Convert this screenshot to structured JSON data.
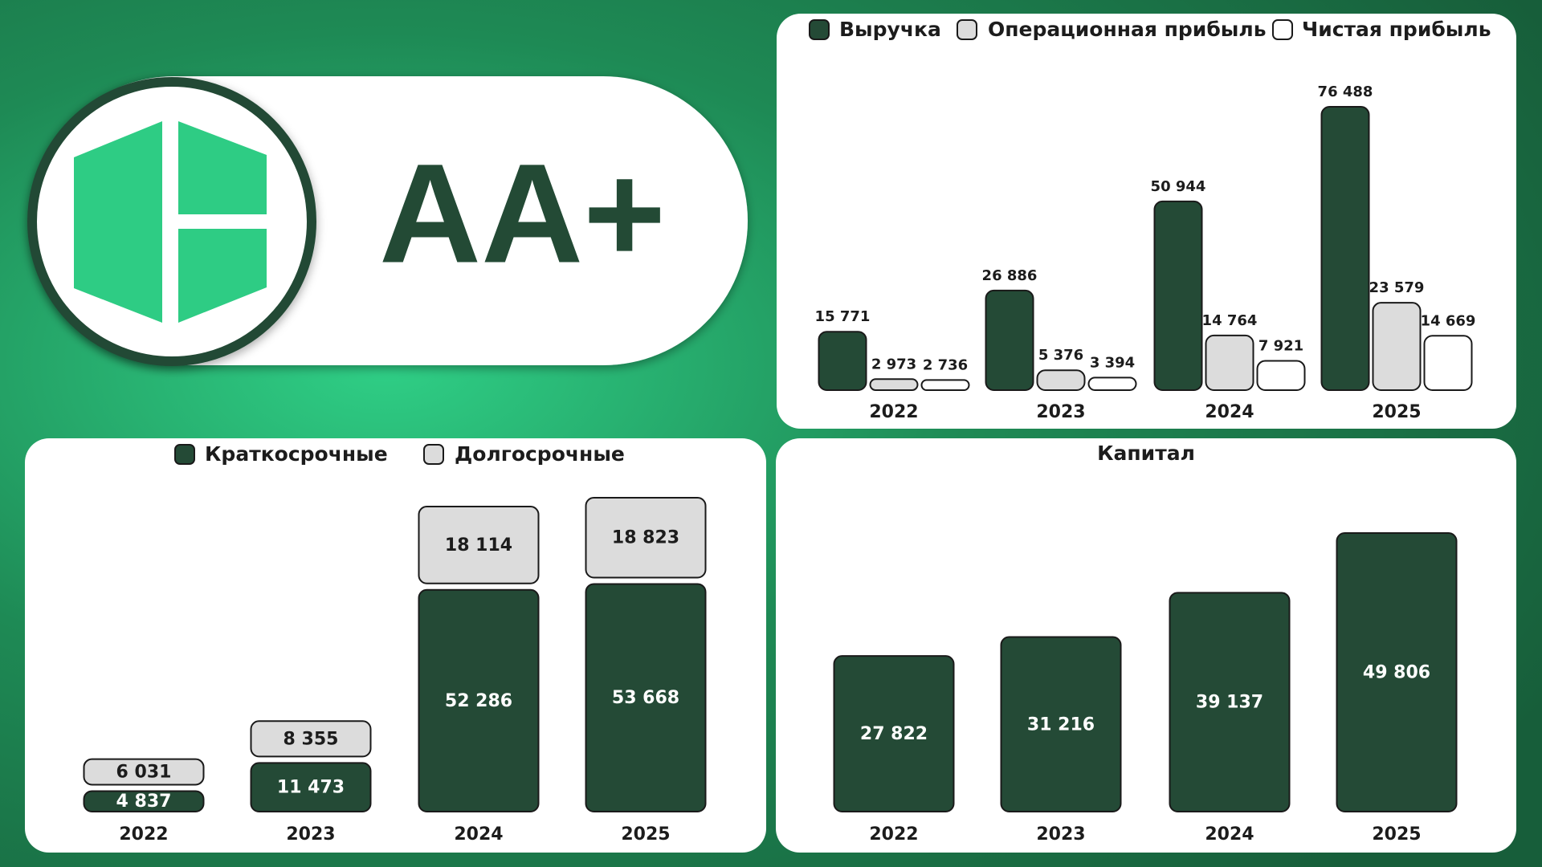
{
  "badge": {
    "rating": "AA+"
  },
  "chart_data": [
    {
      "type": "grouped_bar",
      "categories": [
        "2022",
        "2023",
        "2024",
        "2025"
      ],
      "series": [
        {
          "name": "Выручка",
          "color": "#244a36",
          "values": [
            15771,
            26886,
            50944,
            76488
          ],
          "value_labels": [
            "15 771",
            "26 886",
            "50 944",
            "76 488"
          ]
        },
        {
          "name": "Операционная прибыль",
          "color": "#dcdcdc",
          "values": [
            2973,
            5376,
            14764,
            23579
          ],
          "value_labels": [
            "2 973",
            "5 376",
            "14 764",
            "23 579"
          ]
        },
        {
          "name": "Чистая прибыль",
          "color": "#ffffff",
          "values": [
            2736,
            3394,
            7921,
            14669
          ],
          "value_labels": [
            "2 736",
            "3 394",
            "7 921",
            "14 669"
          ]
        }
      ]
    },
    {
      "type": "stacked_bar",
      "categories": [
        "2022",
        "2023",
        "2024",
        "2025"
      ],
      "series": [
        {
          "name": "Краткосрочные",
          "color": "#244a36",
          "values": [
            4837,
            11473,
            52286,
            53668
          ],
          "value_labels": [
            "4 837",
            "11 473",
            "52 286",
            "53 668"
          ]
        },
        {
          "name": "Долгосрочные",
          "color": "#dcdcdc",
          "values": [
            6031,
            8355,
            18114,
            18823
          ],
          "value_labels": [
            "6 031",
            "8 355",
            "18 114",
            "18 823"
          ]
        }
      ]
    },
    {
      "type": "bar",
      "title": "Капитал",
      "categories": [
        "2022",
        "2023",
        "2024",
        "2025"
      ],
      "color": "#244a36",
      "values": [
        27822,
        31216,
        39137,
        49806
      ],
      "value_labels": [
        "27 822",
        "31 216",
        "39 137",
        "49 806"
      ]
    }
  ]
}
